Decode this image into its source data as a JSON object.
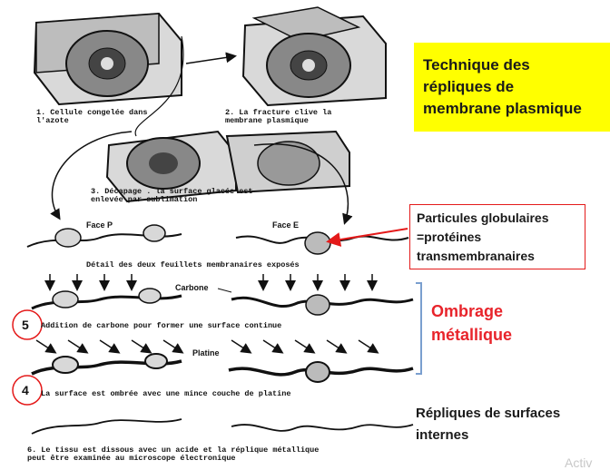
{
  "captions": {
    "step1": "1.  Cellule congelée dans\n     l'azote",
    "step2": "2.  La fracture clive la\n     membrane plasmique",
    "step3": "3.  Décapage . la surface glacée est\n     enlevée par sublimation",
    "face_p": "Face P",
    "face_e": "Face E",
    "detail": "Détail des deux feuillets membranaires exposés",
    "carbone": "Carbone",
    "step5": "Addition de carbone pour former une surface continue",
    "platine": "Platine",
    "step4": "La surface est ombrée avec une mince couche de platine",
    "step6": "6.  Le tissu est dissous avec un acide et la réplique métallique\n     peut être examinée au microscope électronique"
  },
  "circled_numbers": {
    "first": "5",
    "second": "4"
  },
  "title_box": {
    "text": "Technique des\nrépliques de\nmembrane plasmique"
  },
  "particles_box": {
    "text": "Particules globulaires\n=protéines\ntransmembranaires"
  },
  "ombrage": {
    "text": "Ombrage\nmétallique"
  },
  "repliques": {
    "text": "Répliques de surfaces\ninternes"
  },
  "watermark": {
    "text": "Activ"
  },
  "colors": {
    "title_bg": "#ffff00",
    "accent_red": "#e41a1a",
    "bracket_blue": "#7a9fcf",
    "ink": "#111111"
  }
}
